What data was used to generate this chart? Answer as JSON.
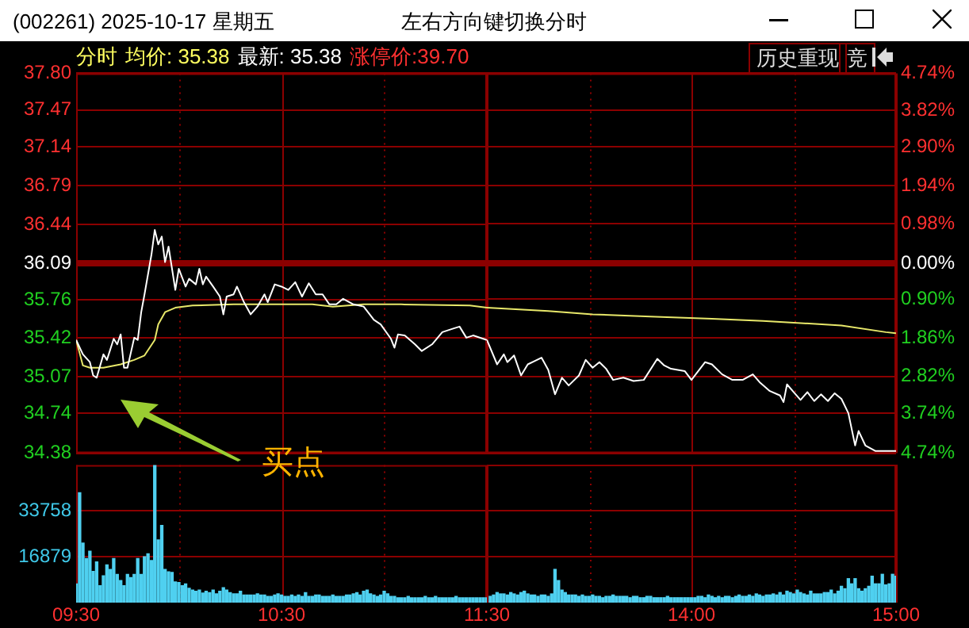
{
  "chart_data": [
    {
      "type": "line",
      "title": "(002261) 2025-10-17 星期五",
      "subtitle": "左右方向键切换分时",
      "annotations": [
        "分时",
        "均价: 35.38",
        "最新: 35.38",
        "涨停价:39.70",
        "历史重现",
        "竞",
        "买点"
      ],
      "xlim": [
        9.5,
        11.5
      ],
      "xticks": [
        9.5,
        {
          "value": 10,
          "label": null
        },
        10.5,
        {
          "value": 11,
          "label": null
        },
        11.5
      ],
      "ylim": [
        34.38,
        37.8
      ],
      "yticks": [
        34.38,
        34.74,
        35.07,
        35.42,
        35.76,
        36.09,
        36.44,
        36.79,
        37.14,
        37.47,
        {
          "value": 37.8,
          "label": "37.80"
        }
      ],
      "ref_lines": [
        {
          "axis": "y",
          "value": 36.09,
          "color": "#8b0000"
        }
      ],
      "grid": true,
      "tick_labels": "y",
      "series": [
        {
          "color": "#ffffff",
          "x": [
            9.5,
            9.533,
            9.567,
            9.583,
            9.6,
            9.633,
            9.65,
            9.683,
            9.7,
            9.717,
            9.733,
            9.75,
            9.783,
            9.8,
            9.817,
            9.833,
            9.867,
            9.883,
            9.9,
            9.917,
            9.933,
            9.95,
            9.967,
            9.983,
            10,
            10.033,
            10.05,
            10.083,
            10.1,
            10.117,
            10.133,
            10.167,
            10.2,
            10.217,
            10.233,
            10.267,
            10.283,
            10.317,
            10.35,
            10.383,
            10.417,
            10.433,
            10.467,
            10.5,
            10.533,
            10.567,
            10.6,
            10.633,
            10.667,
            10.7,
            10.733,
            10.767,
            10.8,
            10.85,
            10.9,
            10.95,
            10.983,
            11.033,
            11.05,
            11.067,
            11.1,
            11.15,
            11.183,
            11.233,
            11.283,
            11.333,
            11.367,
            11.4,
            11.433,
            11.5
          ],
          "values": [
            35.4,
            35.27,
            35.2,
            35.08,
            35.06,
            35.27,
            35.22,
            35.41,
            35.36,
            35.45,
            35.15,
            35.15,
            35.42,
            35.4,
            35.65,
            35.81,
            36.17,
            36.39,
            36.26,
            36.33,
            36.1,
            36.24,
            36.04,
            35.85,
            36.04,
            35.88,
            35.95,
            35.9,
            36.04,
            35.9,
            35.97,
            35.88,
            35.79,
            35.63,
            35.79,
            35.81,
            35.88,
            35.74,
            35.63,
            35.7,
            35.81,
            35.74,
            35.9,
            35.88,
            35.85,
            35.92,
            35.79,
            35.91,
            35.81,
            35.81,
            35.72,
            35.72,
            35.77,
            35.72,
            35.7,
            35.58,
            35.54,
            35.41,
            35.33,
            35.45,
            35.44,
            35.36,
            35.3,
            35.36,
            35.47,
            35.5,
            35.52,
            35.42,
            35.44,
            35.4
          ]
        },
        {
          "color": "#e8e86a",
          "x": [
            9.5,
            9.533,
            9.567,
            9.633,
            9.717,
            9.783,
            9.833,
            9.883,
            9.9,
            9.933,
            9.983,
            10.067,
            10.267,
            10.65,
            10.75,
            10.9,
            11.083,
            11.417,
            11.5
          ],
          "values": [
            35.4,
            35.17,
            35.15,
            35.15,
            35.18,
            35.22,
            35.26,
            35.4,
            35.54,
            35.65,
            35.69,
            35.71,
            35.72,
            35.72,
            35.7,
            35.72,
            35.72,
            35.71,
            35.69
          ]
        }
      ]
    },
    {
      "type": "line",
      "xlim": [
        13,
        15
      ],
      "xticks": [
        {
          "value": 13.5,
          "label": null
        },
        14,
        {
          "value": 14.5,
          "label": null
        },
        15
      ],
      "ylim": [
        34.38,
        37.8
      ],
      "y2lim": [
        -4.74,
        4.74
      ],
      "y2ticks": [
        {
          "value": -4.74,
          "label": "4.74%"
        },
        {
          "value": -3.74,
          "label": "3.74%"
        },
        {
          "value": -2.82,
          "label": "2.82%"
        },
        {
          "value": -1.86,
          "label": "1.86%"
        },
        {
          "value": -0.9,
          "label": "0.90%"
        },
        {
          "value": 0,
          "label": "0.00%"
        },
        {
          "value": 0.98,
          "label": "0.98%"
        },
        {
          "value": 1.94,
          "label": "1.94%"
        },
        {
          "value": 2.9,
          "label": "2.90%"
        },
        {
          "value": 3.82,
          "label": "3.82%"
        },
        {
          "value": 4.74,
          "label": "4.74%"
        }
      ],
      "ref_lines": [
        {
          "axis": "y",
          "value": 36.09,
          "color": "#8b0000"
        }
      ],
      "grid": true,
      "tick_labels": "y",
      "series": [
        {
          "color": "#ffffff",
          "x": [
            13,
            13.05,
            13.083,
            13.1,
            13.133,
            13.167,
            13.2,
            13.233,
            13.267,
            13.3,
            13.333,
            13.367,
            13.4,
            13.45,
            13.483,
            13.517,
            13.55,
            13.583,
            13.617,
            13.667,
            13.717,
            13.767,
            13.833,
            13.867,
            13.9,
            13.933,
            13.967,
            14,
            14.067,
            14.1,
            14.15,
            14.2,
            14.25,
            14.3,
            14.333,
            14.383,
            14.433,
            14.45,
            14.467,
            14.5,
            14.533,
            14.567,
            14.6,
            14.633,
            14.667,
            14.7,
            14.733,
            14.767,
            14.8,
            14.817,
            14.85,
            14.9,
            15
          ],
          "values": [
            35.4,
            35.18,
            35.27,
            35.2,
            35.26,
            35.08,
            35.18,
            35.21,
            35.24,
            35.13,
            34.91,
            35.06,
            34.99,
            35.08,
            35.22,
            35.15,
            35.2,
            35.14,
            35.04,
            35.06,
            35.03,
            35.04,
            35.23,
            35.17,
            35.14,
            35.13,
            35.12,
            35.04,
            35.2,
            35.18,
            35.09,
            35.04,
            35.04,
            35.09,
            35.02,
            34.94,
            34.9,
            34.84,
            35.0,
            34.93,
            34.86,
            34.93,
            34.85,
            34.91,
            34.85,
            34.92,
            34.87,
            34.74,
            34.45,
            34.58,
            34.45,
            34.4,
            34.4
          ]
        },
        {
          "color": "#e8e86a",
          "x": [
            13,
            13.3,
            13.517,
            13.8,
            14.1,
            14.35,
            14.55,
            14.733,
            14.95,
            15
          ],
          "values": [
            35.69,
            35.66,
            35.63,
            35.61,
            35.59,
            35.57,
            35.55,
            35.53,
            35.47,
            35.46
          ]
        }
      ]
    },
    {
      "type": "bar",
      "color": "#4fd0f0",
      "grid": true,
      "xlim": [
        9.5,
        11.5
      ],
      "xticks": [
        {
          "value": 9.5,
          "label": "09:30"
        },
        {
          "value": 10,
          "label": null
        },
        {
          "value": 10.5,
          "label": "10:30"
        },
        {
          "value": 11,
          "label": null
        },
        {
          "value": 11.5,
          "label": "11:30"
        }
      ],
      "ylim": [
        0,
        50637
      ],
      "yticks": [
        16879,
        33758
      ],
      "x": [
        9.5,
        9.517,
        9.533,
        9.55,
        9.567,
        9.583,
        9.6,
        9.617,
        9.633,
        9.65,
        9.667,
        9.683,
        9.7,
        9.717,
        9.733,
        9.75,
        9.767,
        9.783,
        9.8,
        9.817,
        9.833,
        9.85,
        9.867,
        9.883,
        9.9,
        9.917,
        9.933,
        9.95,
        9.967,
        9.983,
        10,
        10.017,
        10.033,
        10.05,
        10.067,
        10.083,
        10.1,
        10.117,
        10.133,
        10.15,
        10.167,
        10.183,
        10.2,
        10.217,
        10.233,
        10.25,
        10.267,
        10.283,
        10.3,
        10.317,
        10.333,
        10.35,
        10.367,
        10.383,
        10.4,
        10.417,
        10.433,
        10.45,
        10.467,
        10.483,
        10.5,
        10.517,
        10.533,
        10.55,
        10.567,
        10.583,
        10.6,
        10.617,
        10.633,
        10.65,
        10.667,
        10.683,
        10.7,
        10.717,
        10.733,
        10.75,
        10.767,
        10.783,
        10.8,
        10.817,
        10.833,
        10.85,
        10.867,
        10.883,
        10.9,
        10.917,
        10.933,
        10.95,
        10.967,
        10.983,
        11,
        11.017,
        11.033,
        11.05,
        11.067,
        11.083,
        11.1,
        11.117,
        11.133,
        11.15,
        11.167,
        11.183,
        11.2,
        11.217,
        11.233,
        11.25,
        11.267,
        11.283,
        11.3,
        11.317,
        11.333,
        11.35,
        11.367,
        11.383,
        11.4,
        11.417,
        11.433,
        11.45,
        11.467,
        11.483,
        11.5
      ],
      "values": [
        6900,
        40400,
        21900,
        16200,
        18900,
        11500,
        15000,
        6200,
        9900,
        13900,
        12200,
        16200,
        10400,
        8100,
        6200,
        10400,
        9200,
        10400,
        16200,
        10400,
        16900,
        18000,
        15500,
        50600,
        23100,
        28400,
        12200,
        11300,
        11100,
        7600,
        7400,
        6200,
        6900,
        5300,
        4600,
        4200,
        4600,
        3500,
        4200,
        3700,
        4600,
        3200,
        4200,
        5500,
        4600,
        3700,
        3200,
        3200,
        4200,
        2800,
        2800,
        2800,
        2800,
        3200,
        2800,
        2800,
        2300,
        2300,
        2800,
        3200,
        2800,
        2300,
        2300,
        2800,
        2300,
        2800,
        2300,
        3700,
        2300,
        2300,
        2800,
        2800,
        2300,
        2300,
        2300,
        2800,
        2300,
        2300,
        2300,
        2800,
        2800,
        3200,
        3700,
        2800,
        4200,
        4600,
        3200,
        2800,
        2300,
        2800,
        4200,
        3200,
        2300,
        2300,
        1800,
        1800,
        1800,
        2300,
        1800,
        1800,
        1800,
        1800,
        2300,
        1800,
        1800,
        2300,
        1800,
        1800,
        1800,
        1800,
        1800,
        2300,
        1800,
        1800,
        1800,
        1800,
        1800,
        1800,
        1800,
        1800,
        1800
      ]
    },
    {
      "type": "bar",
      "color": "#4fd0f0",
      "grid": true,
      "tick_labels": "x",
      "xlim": [
        13,
        15
      ],
      "xticks": [
        {
          "value": 13.5,
          "label": null
        },
        {
          "value": 14,
          "label": "14:00"
        },
        {
          "value": 14.5,
          "label": null
        },
        {
          "value": 15,
          "label": "15:00"
        }
      ],
      "ylim": [
        0,
        50637
      ],
      "yticks": [
        16879,
        33758
      ],
      "x": [
        13.017,
        13.033,
        13.05,
        13.067,
        13.083,
        13.1,
        13.117,
        13.133,
        13.15,
        13.167,
        13.183,
        13.2,
        13.217,
        13.233,
        13.25,
        13.267,
        13.283,
        13.3,
        13.317,
        13.333,
        13.35,
        13.367,
        13.383,
        13.4,
        13.417,
        13.433,
        13.45,
        13.467,
        13.483,
        13.5,
        13.517,
        13.533,
        13.55,
        13.567,
        13.583,
        13.6,
        13.617,
        13.633,
        13.65,
        13.667,
        13.683,
        13.7,
        13.717,
        13.733,
        13.75,
        13.767,
        13.783,
        13.8,
        13.817,
        13.833,
        13.85,
        13.867,
        13.883,
        13.9,
        13.917,
        13.933,
        13.95,
        13.967,
        13.983,
        14,
        14.017,
        14.033,
        14.05,
        14.067,
        14.083,
        14.1,
        14.117,
        14.133,
        14.15,
        14.167,
        14.183,
        14.2,
        14.217,
        14.233,
        14.25,
        14.267,
        14.283,
        14.3,
        14.317,
        14.333,
        14.35,
        14.367,
        14.383,
        14.4,
        14.417,
        14.433,
        14.45,
        14.467,
        14.483,
        14.5,
        14.517,
        14.533,
        14.55,
        14.567,
        14.583,
        14.6,
        14.617,
        14.633,
        14.65,
        14.667,
        14.683,
        14.7,
        14.717,
        14.733,
        14.75,
        14.767,
        14.783,
        14.8,
        14.817,
        14.833,
        14.85,
        14.867,
        14.883,
        14.9,
        14.917,
        14.933,
        14.95,
        14.967,
        14.983,
        15
      ],
      "values": [
        2300,
        2800,
        3700,
        3200,
        3200,
        2800,
        3700,
        3200,
        2800,
        3700,
        4200,
        3200,
        2800,
        2800,
        2300,
        2800,
        2800,
        2300,
        3200,
        12200,
        8100,
        4600,
        3700,
        2800,
        2800,
        2800,
        2300,
        2800,
        2300,
        2300,
        2800,
        2300,
        2300,
        1800,
        2300,
        2300,
        2800,
        2300,
        2300,
        2300,
        2300,
        1800,
        2300,
        2300,
        1800,
        1800,
        2300,
        2300,
        1800,
        1800,
        1800,
        1800,
        2300,
        1800,
        1800,
        1800,
        1800,
        1800,
        1800,
        1800,
        1800,
        2300,
        2300,
        1800,
        2800,
        2300,
        1800,
        2300,
        1800,
        2300,
        2300,
        1800,
        2300,
        2800,
        2300,
        2300,
        2800,
        2300,
        3200,
        2800,
        2300,
        2800,
        2800,
        3200,
        2800,
        3700,
        2800,
        4200,
        3700,
        3200,
        4600,
        3700,
        3200,
        2800,
        4200,
        3200,
        3200,
        3200,
        3700,
        3700,
        4600,
        3200,
        4200,
        6000,
        5100,
        8800,
        6900,
        8800,
        5100,
        4200,
        5100,
        6000,
        9700,
        6900,
        6900,
        10400,
        6500,
        6900,
        10400,
        9700
      ]
    }
  ]
}
